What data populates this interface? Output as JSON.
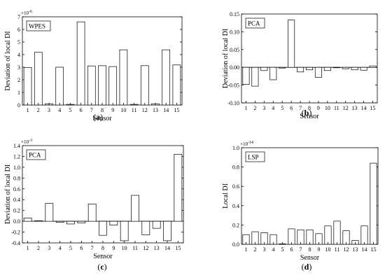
{
  "chart_data": [
    {
      "type": "bar",
      "panel": "(a)",
      "caption_letter": "a",
      "annotation": "WPES",
      "ylabel": "Deviation of local DI",
      "xlabel": "Sensor",
      "y_multiplier": "×10",
      "y_exponent": "-6",
      "ylim": [
        0,
        7
      ],
      "yticks": [
        0,
        1,
        2,
        3,
        4,
        5,
        6,
        7
      ],
      "ytick_labels": [
        "0",
        "1",
        "2",
        "3",
        "4",
        "5",
        "6",
        "7"
      ],
      "categories": [
        "1",
        "2",
        "3",
        "4",
        "5",
        "6",
        "7",
        "8",
        "9",
        "10",
        "11",
        "12",
        "13",
        "14",
        "15"
      ],
      "values": [
        2.98,
        4.18,
        0.1,
        3.0,
        0.05,
        6.6,
        3.1,
        3.12,
        3.05,
        4.38,
        0.05,
        3.12,
        0.1,
        4.38,
        3.18
      ]
    },
    {
      "type": "bar",
      "panel": "(b)",
      "caption_letter": "b",
      "annotation": "PCA",
      "ylabel": "Deviation of local DI",
      "xlabel": "Sensor",
      "y_multiplier": "",
      "y_exponent": "",
      "ylim": [
        -0.1,
        0.15
      ],
      "yticks": [
        -0.1,
        -0.05,
        0.0,
        0.05,
        0.1,
        0.15
      ],
      "ytick_labels": [
        "-0.10",
        "-0.05",
        "0.00",
        "0.05",
        "0.10",
        "0.15"
      ],
      "categories": [
        "1",
        "2",
        "3",
        "4",
        "5",
        "6",
        "7",
        "8",
        "9",
        "10",
        "11",
        "12",
        "13",
        "14",
        "15"
      ],
      "values": [
        -0.048,
        -0.053,
        -0.009,
        -0.035,
        -0.002,
        0.133,
        -0.013,
        -0.007,
        -0.028,
        -0.009,
        -0.001,
        -0.004,
        -0.007,
        -0.008,
        0.004
      ]
    },
    {
      "type": "bar",
      "panel": "(c)",
      "caption_letter": "c",
      "annotation": "PCA",
      "ylabel": "Deviation of local DI",
      "xlabel": "Sensor",
      "y_multiplier": "×10",
      "y_exponent": "-3",
      "ylim": [
        -0.4,
        1.4
      ],
      "yticks": [
        -0.4,
        -0.2,
        0.0,
        0.2,
        0.4,
        0.6,
        0.8,
        1.0,
        1.2,
        1.4
      ],
      "ytick_labels": [
        "-0.4",
        "-0.2",
        "0.0",
        "0.2",
        "0.4",
        "0.6",
        "0.8",
        "1.0",
        "1.2",
        "1.4"
      ],
      "categories": [
        "1",
        "2",
        "3",
        "4",
        "5",
        "6",
        "7",
        "8",
        "9",
        "10",
        "11",
        "12",
        "13",
        "14",
        "15"
      ],
      "values": [
        0.06,
        0.01,
        0.33,
        -0.02,
        -0.05,
        -0.03,
        0.32,
        -0.26,
        -0.07,
        -0.36,
        0.48,
        -0.25,
        -0.13,
        -0.36,
        1.24
      ]
    },
    {
      "type": "bar",
      "panel": "(d)",
      "caption_letter": "d",
      "annotation": "LSP",
      "ylabel": "Local DI",
      "xlabel": "Sensor",
      "y_multiplier": "×10",
      "y_exponent": "-14",
      "ylim": [
        0,
        1.0
      ],
      "yticks": [
        0,
        0.2,
        0.4,
        0.6,
        0.8,
        1.0
      ],
      "ytick_labels": [
        "0.0",
        "0.2",
        "0.4",
        "0.6",
        "0.8",
        "1.0"
      ],
      "categories": [
        "1",
        "2",
        "3",
        "4",
        "5",
        "6",
        "7",
        "8",
        "9",
        "10",
        "11",
        "12",
        "13",
        "14",
        "15"
      ],
      "values": [
        0.1,
        0.13,
        0.12,
        0.1,
        0.005,
        0.16,
        0.15,
        0.15,
        0.11,
        0.19,
        0.24,
        0.14,
        0.04,
        0.19,
        0.84
      ]
    }
  ]
}
